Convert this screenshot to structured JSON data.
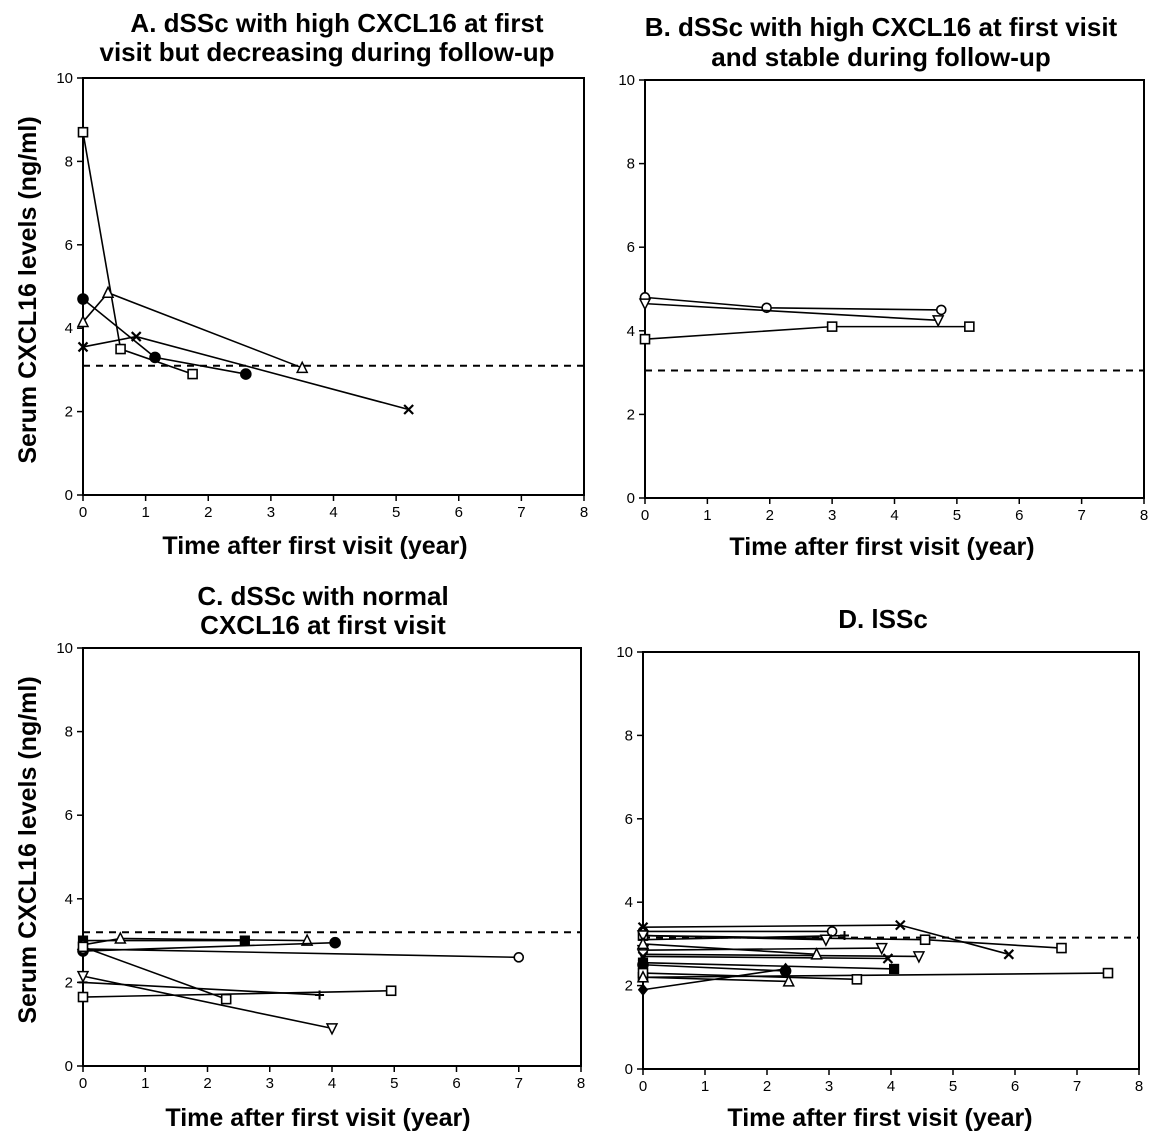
{
  "chart_data": [
    {
      "type": "line",
      "title_lines": [
        "A. dSSc with high CXCL16 at first",
        "visit but decreasing during follow-up"
      ],
      "xlabel": "Time after first visit (year)",
      "ylabel": "Serum CXCL16 levels (ng/ml)",
      "xlim": [
        0,
        8
      ],
      "ylim": [
        0,
        10
      ],
      "xticks": [
        "0",
        "1",
        "2",
        "3",
        "4",
        "5",
        "6",
        "7",
        "8"
      ],
      "yticks": [
        "0",
        "2",
        "4",
        "6",
        "8",
        "10"
      ],
      "threshold": 3.1,
      "series": [
        {
          "marker": "square",
          "x": [
            0,
            0.6,
            1.75
          ],
          "y": [
            8.7,
            3.5,
            2.9
          ]
        },
        {
          "marker": "circle_filled",
          "x": [
            0,
            1.15,
            2.6
          ],
          "y": [
            4.7,
            3.3,
            2.9
          ]
        },
        {
          "marker": "triangle",
          "x": [
            0,
            0.4,
            3.5
          ],
          "y": [
            4.15,
            4.85,
            3.05
          ]
        },
        {
          "marker": "x",
          "x": [
            0,
            0.85,
            5.2
          ],
          "y": [
            3.55,
            3.8,
            2.05
          ]
        }
      ]
    },
    {
      "type": "line",
      "title_lines": [
        "B. dSSc with high CXCL16 at first visit",
        "and stable during follow-up"
      ],
      "xlabel": "Time after first visit (year)",
      "ylabel": "",
      "xlim": [
        0,
        8
      ],
      "ylim": [
        0,
        10
      ],
      "xticks": [
        "0",
        "1",
        "2",
        "3",
        "4",
        "5",
        "6",
        "7",
        "8"
      ],
      "yticks": [
        "0",
        "2",
        "4",
        "6",
        "8",
        "10"
      ],
      "threshold": 3.05,
      "series": [
        {
          "marker": "circle",
          "x": [
            0,
            1.95,
            4.75
          ],
          "y": [
            4.8,
            4.55,
            4.5
          ]
        },
        {
          "marker": "triangle_down",
          "x": [
            0,
            4.7
          ],
          "y": [
            4.65,
            4.25
          ]
        },
        {
          "marker": "square",
          "x": [
            0,
            3.0,
            5.2
          ],
          "y": [
            3.8,
            4.1,
            4.1
          ]
        }
      ]
    },
    {
      "type": "line",
      "title_lines": [
        "C. dSSc with normal",
        "CXCL16 at first visit"
      ],
      "xlabel": "Time after first visit (year)",
      "ylabel": "Serum CXCL16 levels (ng/ml)",
      "xlim": [
        0,
        8
      ],
      "ylim": [
        0,
        10
      ],
      "xticks": [
        "0",
        "1",
        "2",
        "3",
        "4",
        "5",
        "6",
        "7",
        "8"
      ],
      "yticks": [
        "0",
        "2",
        "4",
        "6",
        "8",
        "10"
      ],
      "threshold": 3.2,
      "series": [
        {
          "marker": "square_filled",
          "x": [
            0,
            2.6
          ],
          "y": [
            3.0,
            3.0
          ]
        },
        {
          "marker": "triangle",
          "x": [
            0,
            0.6,
            3.6
          ],
          "y": [
            2.9,
            3.05,
            3.0
          ]
        },
        {
          "marker": "circle_filled",
          "x": [
            0,
            4.05
          ],
          "y": [
            2.75,
            2.95
          ]
        },
        {
          "marker": "circle",
          "x": [
            0,
            7.0
          ],
          "y": [
            2.8,
            2.6
          ]
        },
        {
          "marker": "square",
          "x": [
            0,
            2.3
          ],
          "y": [
            2.85,
            1.6
          ]
        },
        {
          "marker": "plus",
          "x": [
            0,
            3.8
          ],
          "y": [
            2.0,
            1.7
          ]
        },
        {
          "marker": "square",
          "x": [
            0,
            4.95
          ],
          "y": [
            1.65,
            1.8
          ]
        },
        {
          "marker": "triangle_down",
          "x": [
            0,
            4.0
          ],
          "y": [
            2.15,
            0.9
          ]
        }
      ]
    },
    {
      "type": "line",
      "title_lines": [
        "D. lSSc"
      ],
      "xlabel": "Time after first visit (year)",
      "ylabel": "",
      "xlim": [
        0,
        8
      ],
      "ylim": [
        0,
        10
      ],
      "xticks": [
        "0",
        "1",
        "2",
        "3",
        "4",
        "5",
        "6",
        "7",
        "8"
      ],
      "yticks": [
        "0",
        "2",
        "4",
        "6",
        "8",
        "10"
      ],
      "threshold": 3.15,
      "series": [
        {
          "marker": "circle",
          "x": [
            0,
            3.05
          ],
          "y": [
            3.3,
            3.3
          ]
        },
        {
          "marker": "x",
          "x": [
            0,
            4.15,
            5.9
          ],
          "y": [
            3.4,
            3.45,
            2.75
          ]
        },
        {
          "marker": "square",
          "x": [
            0,
            4.55,
            6.75
          ],
          "y": [
            3.2,
            3.1,
            2.9
          ]
        },
        {
          "marker": "plus",
          "x": [
            0,
            3.25
          ],
          "y": [
            3.1,
            3.2
          ]
        },
        {
          "marker": "triangle_down",
          "x": [
            0,
            2.95
          ],
          "y": [
            3.2,
            3.1
          ]
        },
        {
          "marker": "triangle_down",
          "x": [
            0,
            3.85
          ],
          "y": [
            2.85,
            2.9
          ]
        },
        {
          "marker": "triangle_down",
          "x": [
            0,
            4.45
          ],
          "y": [
            2.75,
            2.7
          ]
        },
        {
          "marker": "x",
          "x": [
            0,
            3.95
          ],
          "y": [
            2.7,
            2.65
          ]
        },
        {
          "marker": "triangle",
          "x": [
            0,
            2.8
          ],
          "y": [
            3.0,
            2.75
          ]
        },
        {
          "marker": "square_filled",
          "x": [
            0,
            4.05
          ],
          "y": [
            2.55,
            2.4
          ]
        },
        {
          "marker": "circle_filled",
          "x": [
            0,
            2.3
          ],
          "y": [
            2.5,
            2.35
          ]
        },
        {
          "marker": "square",
          "x": [
            0,
            7.5
          ],
          "y": [
            2.2,
            2.3
          ]
        },
        {
          "marker": "square",
          "x": [
            0,
            3.45
          ],
          "y": [
            2.3,
            2.15
          ]
        },
        {
          "marker": "triangle",
          "x": [
            0,
            2.35
          ],
          "y": [
            2.2,
            2.1
          ]
        },
        {
          "marker": "diamond_filled",
          "x": [
            0,
            2.3
          ],
          "y": [
            1.9,
            2.4
          ]
        }
      ]
    }
  ]
}
